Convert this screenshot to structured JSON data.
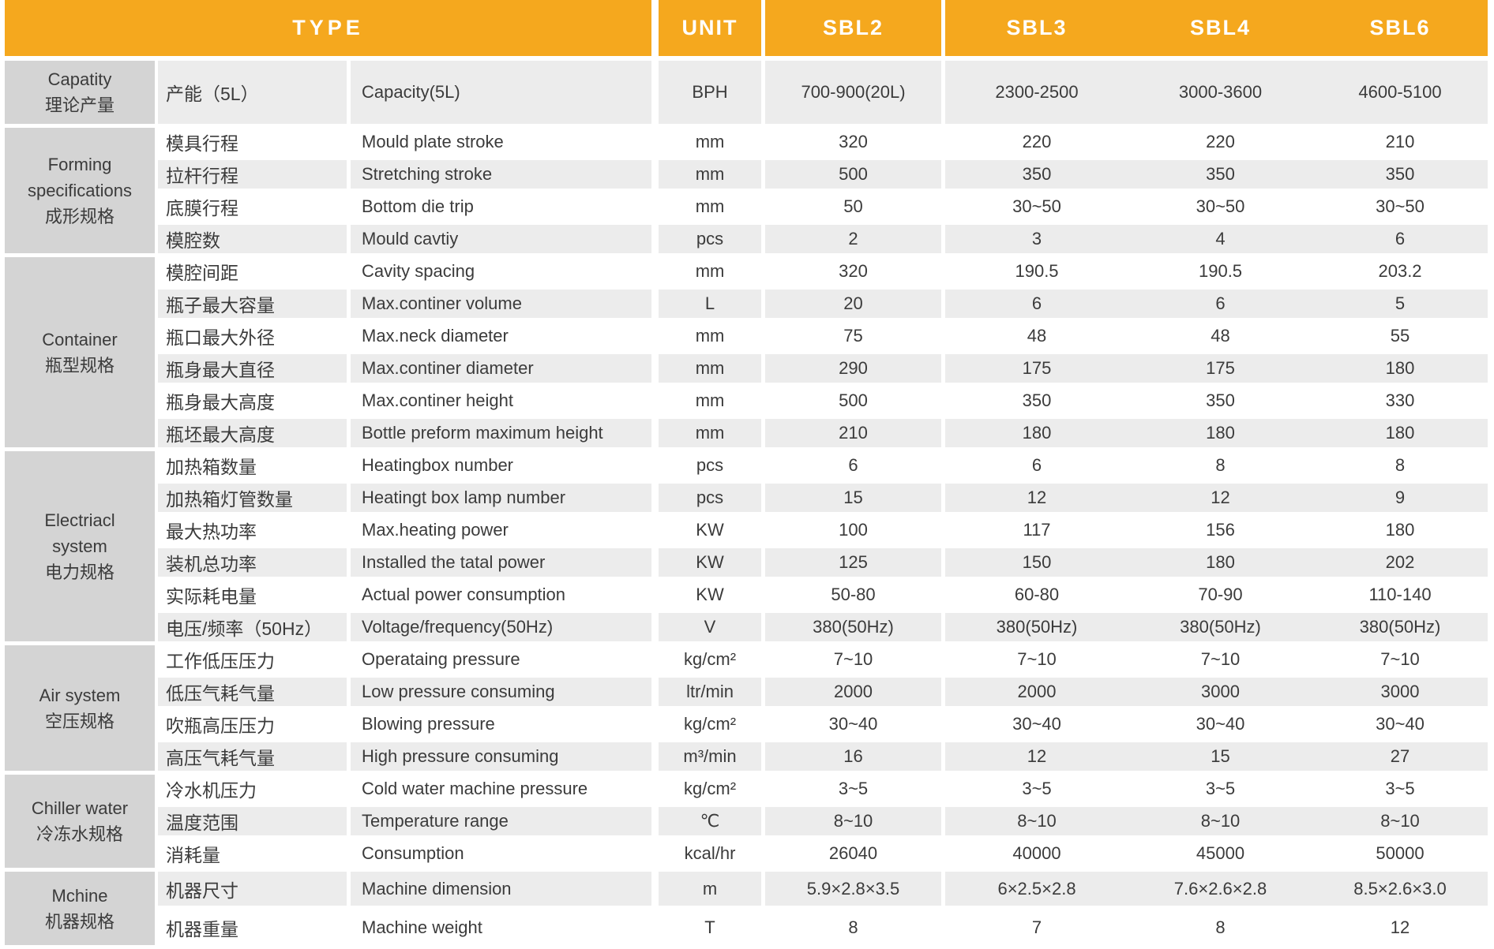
{
  "colors": {
    "header_bg": "#F5A81E",
    "header_text": "#FFFFFF",
    "category_bg": "#D4D4D4",
    "row_gray": "#ECECEC",
    "row_white": "#FFFFFF",
    "text": "#3B3B3B"
  },
  "header": {
    "type_label": "TYPE",
    "unit_label": "UNIT",
    "models": [
      "SBL2",
      "SBL3",
      "SBL4",
      "SBL6"
    ]
  },
  "groups": [
    {
      "en": "Capatity",
      "cn": "理论产量",
      "rows": [
        {
          "cn": "产能（5L）",
          "en": "Capacity(5L)",
          "unit": "BPH",
          "values": [
            "700-900(20L)",
            "2300-2500",
            "3000-3600",
            "4600-5100"
          ]
        }
      ]
    },
    {
      "en": "Forming specifications",
      "cn": "成形规格",
      "rows": [
        {
          "cn": "模具行程",
          "en": "Mould plate stroke",
          "unit": "mm",
          "values": [
            "320",
            "220",
            "220",
            "210"
          ]
        },
        {
          "cn": "拉杆行程",
          "en": "Stretching stroke",
          "unit": "mm",
          "values": [
            "500",
            "350",
            "350",
            "350"
          ]
        },
        {
          "cn": "底膜行程",
          "en": "Bottom die trip",
          "unit": "mm",
          "values": [
            "50",
            "30~50",
            "30~50",
            "30~50"
          ]
        },
        {
          "cn": "模腔数",
          "en": "Mould cavtiy",
          "unit": "pcs",
          "values": [
            "2",
            "3",
            "4",
            "6"
          ]
        }
      ]
    },
    {
      "en": "Container",
      "cn": "瓶型规格",
      "rows": [
        {
          "cn": "模腔间距",
          "en": "Cavity spacing",
          "unit": "mm",
          "values": [
            "320",
            "190.5",
            "190.5",
            "203.2"
          ]
        },
        {
          "cn": "瓶子最大容量",
          "en": "Max.continer volume",
          "unit": "L",
          "values": [
            "20",
            "6",
            "6",
            "5"
          ]
        },
        {
          "cn": "瓶口最大外径",
          "en": "Max.neck diameter",
          "unit": "mm",
          "values": [
            "75",
            "48",
            "48",
            "55"
          ]
        },
        {
          "cn": "瓶身最大直径",
          "en": "Max.continer diameter",
          "unit": "mm",
          "values": [
            "290",
            "175",
            "175",
            "180"
          ]
        },
        {
          "cn": "瓶身最大高度",
          "en": "Max.continer height",
          "unit": "mm",
          "values": [
            "500",
            "350",
            "350",
            "330"
          ]
        },
        {
          "cn": "瓶坯最大高度",
          "en": "Bottle preform maximum height",
          "unit": "mm",
          "values": [
            "210",
            "180",
            "180",
            "180"
          ]
        }
      ]
    },
    {
      "en": "Electriacl system",
      "cn": "电力规格",
      "rows": [
        {
          "cn": "加热箱数量",
          "en": "Heatingbox number",
          "unit": "pcs",
          "values": [
            "6",
            "6",
            "8",
            "8"
          ]
        },
        {
          "cn": "加热箱灯管数量",
          "en": "Heatingt box lamp number",
          "unit": "pcs",
          "values": [
            "15",
            "12",
            "12",
            "9"
          ]
        },
        {
          "cn": "最大热功率",
          "en": "Max.heating power",
          "unit": "KW",
          "values": [
            "100",
            "117",
            "156",
            "180"
          ]
        },
        {
          "cn": "装机总功率",
          "en": "Installed the tatal power",
          "unit": "KW",
          "values": [
            "125",
            "150",
            "180",
            "202"
          ]
        },
        {
          "cn": "实际耗电量",
          "en": "Actual power consumption",
          "unit": "KW",
          "values": [
            "50-80",
            "60-80",
            "70-90",
            "110-140"
          ]
        },
        {
          "cn": "电压/频率（50Hz）",
          "en": "Voltage/frequency(50Hz)",
          "unit": "V",
          "values": [
            "380(50Hz)",
            "380(50Hz)",
            "380(50Hz)",
            "380(50Hz)"
          ]
        }
      ]
    },
    {
      "en": "Air system",
      "cn": "空压规格",
      "rows": [
        {
          "cn": "工作低压压力",
          "en": "Operataing pressure",
          "unit": "kg/cm²",
          "values": [
            "7~10",
            "7~10",
            "7~10",
            "7~10"
          ]
        },
        {
          "cn": "低压气耗气量",
          "en": "Low pressure consuming",
          "unit": "ltr/min",
          "values": [
            "2000",
            "2000",
            "3000",
            "3000"
          ]
        },
        {
          "cn": "吹瓶高压压力",
          "en": "Blowing pressure",
          "unit": "kg/cm²",
          "values": [
            "30~40",
            "30~40",
            "30~40",
            "30~40"
          ]
        },
        {
          "cn": "高压气耗气量",
          "en": "High pressure consuming",
          "unit": "m³/min",
          "values": [
            "16",
            "12",
            "15",
            "27"
          ]
        }
      ]
    },
    {
      "en": "Chiller water",
      "cn": "冷冻水规格",
      "rows": [
        {
          "cn": "冷水机压力",
          "en": "Cold water machine pressure",
          "unit": "kg/cm²",
          "values": [
            "3~5",
            "3~5",
            "3~5",
            "3~5"
          ]
        },
        {
          "cn": "温度范围",
          "en": "Temperature range",
          "unit": "℃",
          "values": [
            "8~10",
            "8~10",
            "8~10",
            "8~10"
          ]
        },
        {
          "cn": "消耗量",
          "en": "Consumption",
          "unit": "kcal/hr",
          "values": [
            "26040",
            "40000",
            "45000",
            "50000"
          ]
        }
      ]
    },
    {
      "en": "Mchine",
      "cn": "机器规格",
      "rows": [
        {
          "cn": "机器尺寸",
          "en": "Machine dimension",
          "unit": "m",
          "values": [
            "5.9×2.8×3.5",
            "6×2.5×2.8",
            "7.6×2.6×2.8",
            "8.5×2.6×3.0"
          ]
        },
        {
          "cn": "机器重量",
          "en": "Machine weight",
          "unit": "T",
          "values": [
            "8",
            "7",
            "8",
            "12"
          ]
        }
      ]
    }
  ]
}
